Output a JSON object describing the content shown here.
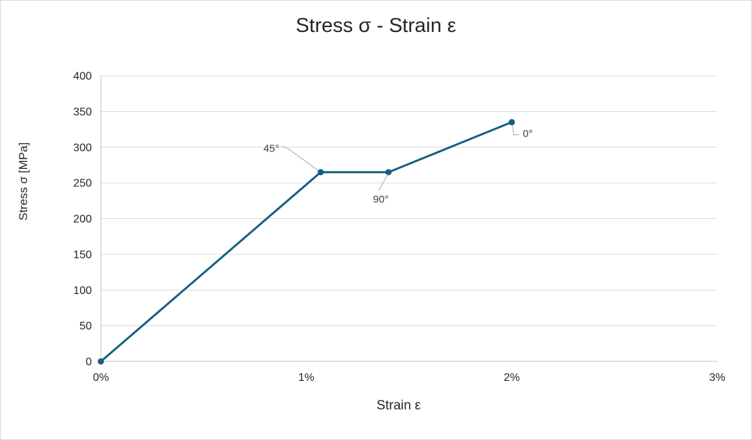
{
  "chart_data": {
    "type": "line",
    "title": "Stress σ - Strain ε",
    "xlabel": "Strain ε",
    "ylabel": "Stress σ [MPa]",
    "xlim": [
      0,
      3
    ],
    "ylim": [
      0,
      400
    ],
    "x_tick_labels": [
      "0%",
      "1%",
      "2%",
      "3%"
    ],
    "x_tick_values": [
      0,
      1,
      2,
      3
    ],
    "y_ticks": [
      0,
      50,
      100,
      150,
      200,
      250,
      300,
      350,
      400
    ],
    "grid": "horizontal",
    "legend": "none",
    "colors": {
      "series": "#156082",
      "grid": "#d9d9d9",
      "axis": "#bfbfbf",
      "tick_text": "#262626",
      "annotation_text": "#404040",
      "annotation_leader": "#a6a6a6"
    },
    "series": [
      {
        "color": "#156082",
        "points": [
          {
            "x": 0,
            "y": 0
          },
          {
            "x": 1.07,
            "y": 265
          },
          {
            "x": 1.4,
            "y": 265
          },
          {
            "x": 2.0,
            "y": 335
          }
        ]
      }
    ],
    "annotations": [
      {
        "text": "45°",
        "point_index": 1
      },
      {
        "text": "90°",
        "point_index": 2
      },
      {
        "text": "0°",
        "point_index": 3
      }
    ]
  }
}
